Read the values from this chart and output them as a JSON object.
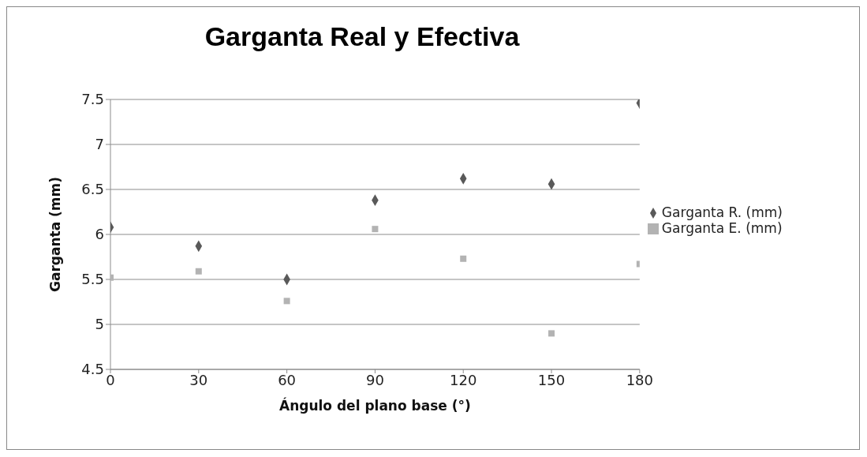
{
  "chart_data": {
    "type": "scatter",
    "title": "Garganta Real y Efectiva",
    "xlabel": "Ángulo del plano base (°)",
    "ylabel": "Garganta (mm)",
    "x": [
      0,
      30,
      60,
      90,
      120,
      150,
      180
    ],
    "series": [
      {
        "name": "Garganta R. (mm)",
        "color": "#595959",
        "marker": "diamond",
        "values": [
          6.08,
          5.87,
          5.5,
          6.38,
          6.62,
          6.56,
          7.46
        ]
      },
      {
        "name": "Garganta E. (mm)",
        "color": "#b3b3b3",
        "marker": "square",
        "values": [
          5.52,
          5.59,
          5.26,
          6.06,
          5.73,
          4.9,
          5.67
        ]
      }
    ],
    "xlim": [
      0,
      180
    ],
    "xticks": [
      0,
      30,
      60,
      90,
      120,
      150,
      180
    ],
    "ylim": [
      4.5,
      7.5
    ],
    "yticks": [
      4.5,
      5,
      5.5,
      6,
      6.5,
      7,
      7.5
    ],
    "grid": "y",
    "legend": "right"
  }
}
